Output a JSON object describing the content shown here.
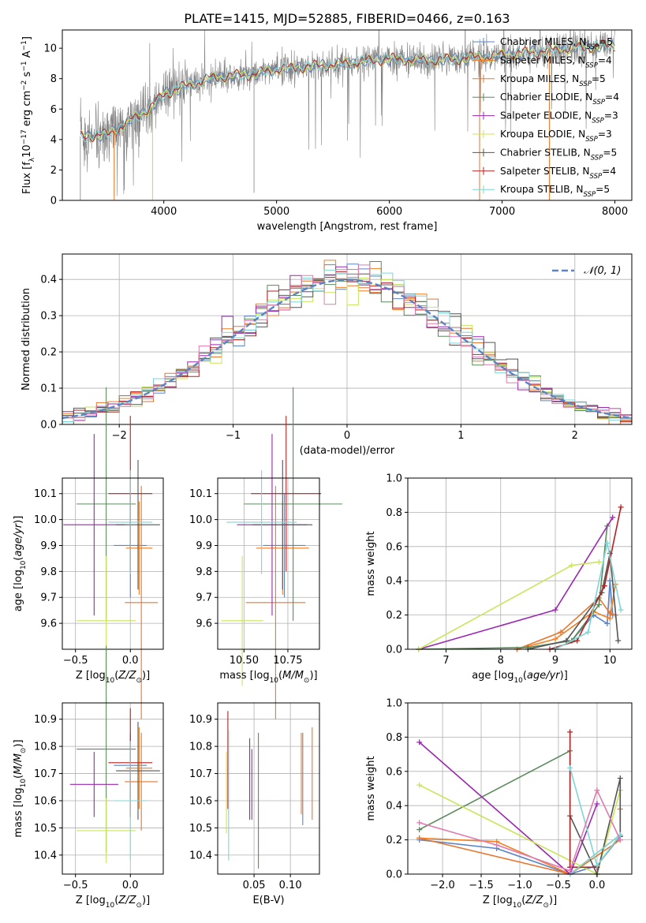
{
  "title": "PLATE=1415, MJD=52885, FIBERID=0466, z=0.163",
  "colors": {
    "Chabrier MILES": "#5b84c4",
    "Salpeter MILES": "#f47e20",
    "Kroupa MILES": "#e8762f",
    "Chabrier ELODIE": "#5a8a5a",
    "Salpeter ELODIE": "#9c27b0",
    "Kroupa ELODIE": "#c8e65a",
    "Chabrier STELIB": "#555555",
    "Salpeter STELIB": "#b22222",
    "Kroupa STELIB": "#7fd6d6",
    "data": "#808080",
    "mix": "#e07ab0",
    "gauss": "#5b84c4"
  },
  "chart_data": [
    {
      "id": "spectrum",
      "type": "line",
      "xlabel": "wavelength [Angstrom, rest frame]",
      "ylabel": "Flux [f_λ10^-17 erg cm^-2 s^-1 A^-1]",
      "xlim": [
        3100,
        8150
      ],
      "ylim": [
        0,
        11.2
      ],
      "xticks": [
        "4000",
        "5000",
        "6000",
        "7000",
        "8000"
      ],
      "yticks": [
        "0",
        "2",
        "4",
        "6",
        "8",
        "10"
      ],
      "legend_position": "upper-right",
      "legend": [
        "Chabrier MILES, N_SSP=5",
        "Salpeter MILES, N_SSP=4",
        "Kroupa MILES, N_SSP=5",
        "Chabrier ELODIE, N_SSP=4",
        "Salpeter ELODIE, N_SSP=3",
        "Kroupa ELODIE, N_SSP=3",
        "Chabrier STELIB, N_SSP=5",
        "Salpeter STELIB, N_SSP=4",
        "Kroupa STELIB, N_SSP=5"
      ],
      "continuum": [
        [
          3260,
          4.2
        ],
        [
          3500,
          4.3
        ],
        [
          3700,
          5.2
        ],
        [
          3900,
          6.2
        ],
        [
          4000,
          7.0
        ],
        [
          4200,
          7.5
        ],
        [
          4400,
          8.0
        ],
        [
          4600,
          8.2
        ],
        [
          4800,
          8.3
        ],
        [
          5000,
          8.6
        ],
        [
          5300,
          8.8
        ],
        [
          5600,
          9.0
        ],
        [
          6000,
          9.3
        ],
        [
          6400,
          9.2
        ],
        [
          6800,
          9.4
        ],
        [
          7200,
          9.7
        ],
        [
          7600,
          10.0
        ],
        [
          8000,
          10.2
        ]
      ]
    },
    {
      "id": "residuals",
      "type": "histogram",
      "xlabel": "(data-model)/error",
      "ylabel": "Normed distribution",
      "xlim": [
        -2.5,
        2.5
      ],
      "ylim": [
        0,
        0.47
      ],
      "xticks": [
        "−2",
        "−1",
        "0",
        "1",
        "2"
      ],
      "yticks": [
        "0.0",
        "0.1",
        "0.2",
        "0.3",
        "0.4"
      ],
      "legend": [
        "𝒩(0, 1)"
      ],
      "legend_position": "upper-right",
      "grid": true
    },
    {
      "id": "age_vs_Z",
      "type": "errorbar",
      "xlabel": "Z [log10(Z/Z⊙)]",
      "ylabel": "age  [log10(age/yr)]",
      "xlim": [
        -0.62,
        0.3
      ],
      "ylim": [
        9.5,
        10.16
      ],
      "xticks": [
        "−0.5",
        "0.0"
      ],
      "yticks": [
        "9.6",
        "9.7",
        "9.8",
        "9.9",
        "10.0",
        "10.1"
      ],
      "points": [
        {
          "model": "Chabrier MILES",
          "x": 0.0,
          "xerr": 0.15,
          "y": 9.9,
          "yerr": 0.2
        },
        {
          "model": "Salpeter MILES",
          "x": 0.08,
          "xerr": 0.12,
          "y": 9.89,
          "yerr": 0.18
        },
        {
          "model": "Kroupa MILES",
          "x": 0.1,
          "xerr": 0.15,
          "y": 9.68,
          "yerr": 0.45
        },
        {
          "model": "Chabrier ELODIE",
          "x": -0.22,
          "xerr": 0.27,
          "y": 10.06,
          "yerr": 0.45
        },
        {
          "model": "Salpeter ELODIE",
          "x": -0.33,
          "xerr": 0.28,
          "y": 9.98,
          "yerr": 0.35
        },
        {
          "model": "Kroupa ELODIE",
          "x": -0.22,
          "xerr": 0.27,
          "y": 9.61,
          "yerr": 0.25
        },
        {
          "model": "Chabrier STELIB",
          "x": 0.07,
          "xerr": 0.2,
          "y": 9.98,
          "yerr": 0.25
        },
        {
          "model": "Salpeter STELIB",
          "x": 0.0,
          "xerr": 0.2,
          "y": 10.1,
          "yerr": 0.3
        },
        {
          "model": "Kroupa STELIB",
          "x": 0.0,
          "xerr": 0.2,
          "y": 9.99,
          "yerr": 0.2
        }
      ]
    },
    {
      "id": "age_vs_mass",
      "type": "errorbar",
      "xlabel": "mass [log10(M/M⊙)]",
      "ylabel": "",
      "xlim": [
        10.35,
        10.93
      ],
      "ylim": [
        9.5,
        10.16
      ],
      "xticks": [
        "10.50",
        "10.75"
      ],
      "yticks": [
        "9.6",
        "9.7",
        "9.8",
        "9.9",
        "10.0",
        "10.1"
      ],
      "points": [
        {
          "model": "Chabrier MILES",
          "x": 10.73,
          "xerr": 0.12,
          "y": 9.9,
          "yerr": 0.2
        },
        {
          "model": "Salpeter MILES",
          "x": 10.72,
          "xerr": 0.15,
          "y": 9.89,
          "yerr": 0.18
        },
        {
          "model": "Kroupa MILES",
          "x": 10.68,
          "xerr": 0.17,
          "y": 9.68,
          "yerr": 0.45
        },
        {
          "model": "Chabrier ELODIE",
          "x": 10.78,
          "xerr": 0.28,
          "y": 10.06,
          "yerr": 0.45
        },
        {
          "model": "Salpeter ELODIE",
          "x": 10.66,
          "xerr": 0.2,
          "y": 9.98,
          "yerr": 0.35
        },
        {
          "model": "Kroupa ELODIE",
          "x": 10.49,
          "xerr": 0.12,
          "y": 9.61,
          "yerr": 0.25
        },
        {
          "model": "Chabrier STELIB",
          "x": 10.72,
          "xerr": 0.17,
          "y": 9.98,
          "yerr": 0.25
        },
        {
          "model": "Salpeter STELIB",
          "x": 10.74,
          "xerr": 0.2,
          "y": 10.1,
          "yerr": 0.3
        },
        {
          "model": "Kroupa STELIB",
          "x": 10.6,
          "xerr": 0.2,
          "y": 9.99,
          "yerr": 0.2
        }
      ]
    },
    {
      "id": "weight_vs_age",
      "type": "line",
      "xlabel": "age  [log10(age/yr)]",
      "ylabel": "mass weight",
      "xlim": [
        6.3,
        10.4
      ],
      "ylim": [
        0,
        1
      ],
      "xticks": [
        "7",
        "8",
        "9",
        "10"
      ],
      "yticks": [
        "0.0",
        "0.2",
        "0.4",
        "0.6",
        "0.8",
        "1.0"
      ],
      "grid": true,
      "series": [
        {
          "model": "Chabrier MILES",
          "x": [
            9.3,
            9.7,
            9.95,
            10.0,
            10.05
          ],
          "y": [
            0.05,
            0.2,
            0.15,
            0.4,
            0.2
          ]
        },
        {
          "model": "Salpeter MILES",
          "x": [
            8.3,
            9.0,
            9.7,
            10.0,
            10.1
          ],
          "y": [
            0.0,
            0.06,
            0.22,
            0.18,
            0.38
          ]
        },
        {
          "model": "Kroupa MILES",
          "x": [
            8.3,
            9.1,
            9.8,
            10.0,
            10.1
          ],
          "y": [
            0.0,
            0.1,
            0.3,
            0.21,
            0.2
          ]
        },
        {
          "model": "Chabrier ELODIE",
          "x": [
            6.5,
            8.5,
            9.3,
            9.8,
            9.95
          ],
          "y": [
            0.0,
            0.01,
            0.05,
            0.26,
            0.72
          ]
        },
        {
          "model": "Salpeter ELODIE",
          "x": [
            6.5,
            9.0,
            10.05
          ],
          "y": [
            0.0,
            0.23,
            0.77
          ]
        },
        {
          "model": "Kroupa ELODIE",
          "x": [
            6.5,
            9.3,
            9.8
          ],
          "y": [
            0.0,
            0.49,
            0.51
          ]
        },
        {
          "model": "Chabrier STELIB",
          "x": [
            8.5,
            9.2,
            9.85,
            10.0,
            10.15
          ],
          "y": [
            0.0,
            0.05,
            0.33,
            0.56,
            0.05
          ]
        },
        {
          "model": "Salpeter STELIB",
          "x": [
            8.9,
            9.4,
            9.9,
            10.2
          ],
          "y": [
            0.0,
            0.05,
            0.37,
            0.83
          ]
        },
        {
          "model": "Kroupa STELIB",
          "x": [
            9.0,
            9.6,
            9.95,
            10.2
          ],
          "y": [
            0.0,
            0.1,
            0.62,
            0.23
          ]
        }
      ]
    },
    {
      "id": "mass_vs_Z",
      "type": "errorbar",
      "xlabel": "Z [log10(Z/Z⊙)]",
      "ylabel": "mass [log10(M/M⊙)]",
      "xlim": [
        -0.62,
        0.3
      ],
      "ylim": [
        10.33,
        10.96
      ],
      "xticks": [
        "−0.5",
        "0.0"
      ],
      "yticks": [
        "10.4",
        "10.5",
        "10.6",
        "10.7",
        "10.8",
        "10.9"
      ],
      "points": [
        {
          "model": "Chabrier MILES",
          "x": 0.0,
          "xerr": 0.15,
          "y": 10.73,
          "yerr": 0.12
        },
        {
          "model": "Salpeter MILES",
          "x": 0.08,
          "xerr": 0.12,
          "y": 10.72,
          "yerr": 0.15
        },
        {
          "model": "Kroupa MILES",
          "x": 0.1,
          "xerr": 0.15,
          "y": 10.67,
          "yerr": 0.18
        },
        {
          "model": "Chabrier ELODIE",
          "x": -0.22,
          "xerr": 0.27,
          "y": 10.79,
          "yerr": 0.38
        },
        {
          "model": "Salpeter ELODIE",
          "x": -0.33,
          "xerr": 0.22,
          "y": 10.66,
          "yerr": 0.12
        },
        {
          "model": "Kroupa ELODIE",
          "x": -0.22,
          "xerr": 0.27,
          "y": 10.49,
          "yerr": 0.12
        },
        {
          "model": "Chabrier STELIB",
          "x": 0.07,
          "xerr": 0.2,
          "y": 10.71,
          "yerr": 0.18
        },
        {
          "model": "Salpeter STELIB",
          "x": 0.0,
          "xerr": 0.2,
          "y": 10.74,
          "yerr": 0.2
        },
        {
          "model": "Kroupa STELIB",
          "x": 0.0,
          "xerr": 0.15,
          "y": 10.6,
          "yerr": 0.22
        }
      ]
    },
    {
      "id": "mass_vs_ebv",
      "type": "errorbar",
      "xlabel": "E(B-V)",
      "ylabel": "",
      "xlim": [
        0.0,
        0.14
      ],
      "ylim": [
        10.33,
        10.96
      ],
      "xticks": [
        "0.05",
        "0.10"
      ],
      "yticks": [
        "10.4",
        "10.5",
        "10.6",
        "10.7",
        "10.8",
        "10.9"
      ],
      "points": [
        {
          "model": "Chabrier MILES",
          "x": 0.117,
          "y": 10.68,
          "yerr": 0.17
        },
        {
          "model": "Salpeter MILES",
          "x": 0.115,
          "y": 10.7,
          "yerr": 0.15
        },
        {
          "model": "Kroupa MILES",
          "x": 0.13,
          "y": 10.7,
          "yerr": 0.17
        },
        {
          "model": "Chabrier ELODIE",
          "x": 0.056,
          "y": 10.6,
          "yerr": 0.25
        },
        {
          "model": "Salpeter ELODIE",
          "x": 0.047,
          "y": 10.66,
          "yerr": 0.13
        },
        {
          "model": "Kroupa ELODIE",
          "x": 0.012,
          "y": 10.63,
          "yerr": 0.15
        },
        {
          "model": "Chabrier STELIB",
          "x": 0.044,
          "y": 10.68,
          "yerr": 0.15
        },
        {
          "model": "Salpeter STELIB",
          "x": 0.014,
          "y": 10.75,
          "yerr": 0.18
        },
        {
          "model": "Kroupa STELIB",
          "x": 0.015,
          "y": 10.62,
          "yerr": 0.24
        }
      ]
    },
    {
      "id": "weight_vs_Z",
      "type": "line",
      "xlabel": "Z [log10(Z/Z⊙)]",
      "ylabel": "mass weight",
      "xlim": [
        -2.45,
        0.45
      ],
      "ylim": [
        0,
        1
      ],
      "xticks": [
        "−2.0",
        "−1.5",
        "−1.0",
        "−0.5",
        "0.0"
      ],
      "yticks": [
        "0.0",
        "0.2",
        "0.4",
        "0.6",
        "0.8",
        "1.0"
      ],
      "grid": true,
      "series": [
        {
          "model": "Chabrier MILES",
          "x": [
            -2.3,
            -1.3,
            -0.35,
            0.0,
            0.3
          ],
          "y": [
            0.2,
            0.15,
            0.0,
            0.05,
            0.22
          ]
        },
        {
          "model": "Salpeter MILES",
          "x": [
            -2.3,
            -1.3,
            -0.35,
            0.3,
            0.3
          ],
          "y": [
            0.21,
            0.19,
            0.0,
            0.23,
            0.38
          ]
        },
        {
          "model": "Kroupa MILES",
          "x": [
            -2.3,
            -0.35,
            0.3
          ],
          "y": [
            0.21,
            0.0,
            0.2
          ]
        },
        {
          "model": "Chabrier ELODIE",
          "x": [
            -2.3,
            -0.35,
            -0.35
          ],
          "y": [
            0.26,
            0.72,
            0.0
          ]
        },
        {
          "model": "Salpeter ELODIE",
          "x": [
            -2.3,
            -0.35,
            0.0
          ],
          "y": [
            0.77,
            0.0,
            0.41
          ]
        },
        {
          "model": "Kroupa ELODIE",
          "x": [
            -2.3,
            0.0,
            0.3
          ],
          "y": [
            0.52,
            0.0,
            0.49
          ]
        },
        {
          "model": "Chabrier STELIB",
          "x": [
            -0.35,
            0.0,
            0.3,
            0.3
          ],
          "y": [
            0.34,
            0.0,
            0.56,
            0.22
          ]
        },
        {
          "model": "Salpeter STELIB",
          "x": [
            -0.35,
            -0.35,
            0.0
          ],
          "y": [
            0.83,
            0.04,
            0.04
          ]
        },
        {
          "model": "Kroupa STELIB",
          "x": [
            -0.35,
            0.0,
            0.3,
            -0.35
          ],
          "y": [
            0.62,
            0.05,
            0.23,
            0.0
          ]
        },
        {
          "model": "mix",
          "x": [
            -2.3,
            -1.3,
            -0.35,
            0.0,
            0.3
          ],
          "y": [
            0.3,
            0.17,
            0.02,
            0.49,
            0.2
          ]
        }
      ]
    }
  ]
}
